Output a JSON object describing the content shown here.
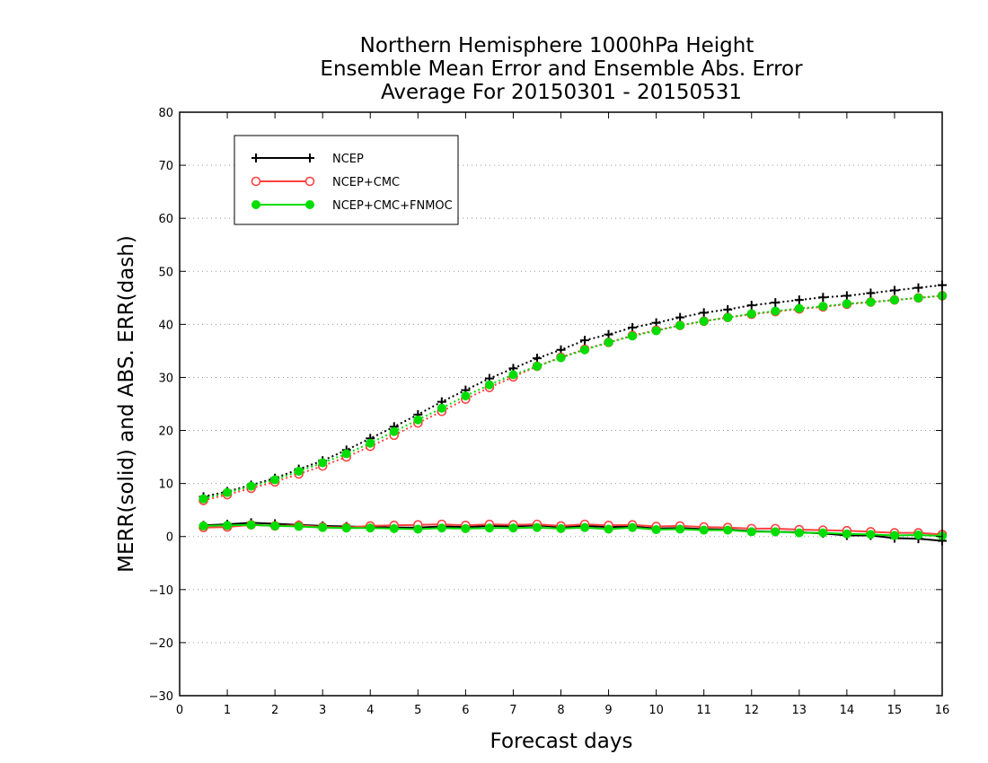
{
  "chart_data": {
    "type": "line",
    "title_lines": [
      "Northern Hemisphere 1000hPa Height",
      "Ensemble Mean Error and Ensemble Abs. Error",
      "Average For 20150301 - 20150531"
    ],
    "xlabel": "Forecast days",
    "ylabel": "MERR(solid) and ABS. ERR(dash)",
    "xlim": [
      0,
      16
    ],
    "ylim": [
      -30,
      80
    ],
    "x_ticks": [
      0,
      1,
      2,
      3,
      4,
      5,
      6,
      7,
      8,
      9,
      10,
      11,
      12,
      13,
      14,
      15,
      16
    ],
    "y_ticks": [
      -30,
      -20,
      -10,
      0,
      10,
      20,
      30,
      40,
      50,
      60,
      70,
      80
    ],
    "grid": "horizontal-dotted",
    "legend_position": "top-left",
    "x": [
      0.5,
      1,
      1.5,
      2,
      2.5,
      3,
      3.5,
      4,
      4.5,
      5,
      5.5,
      6,
      6.5,
      7,
      7.5,
      8,
      8.5,
      9,
      9.5,
      10,
      10.5,
      11,
      11.5,
      12,
      12.5,
      13,
      13.5,
      14,
      14.5,
      15,
      15.5,
      16
    ],
    "series": [
      {
        "name": "NCEP",
        "color": "#000000",
        "marker": "plus",
        "abs_err": [
          7.5,
          8.5,
          9.7,
          11,
          12.7,
          14.3,
          16.3,
          18.5,
          20.7,
          23,
          25.4,
          27.6,
          29.8,
          31.7,
          33.6,
          35.2,
          37,
          38.1,
          39.4,
          40.3,
          41.3,
          42.2,
          42.8,
          43.6,
          44.1,
          44.6,
          45.1,
          45.4,
          45.9,
          46.4,
          46.9,
          47.4
        ],
        "mean_err": [
          2.1,
          2.3,
          2.6,
          2.4,
          2.2,
          2,
          1.9,
          1.8,
          1.7,
          1.7,
          1.9,
          1.8,
          2,
          1.9,
          2.1,
          1.8,
          2,
          1.8,
          1.9,
          1.5,
          1.6,
          1.4,
          1.3,
          1,
          0.9,
          0.8,
          0.6,
          0.2,
          0.2,
          -0.3,
          -0.4,
          -0.8
        ]
      },
      {
        "name": "NCEP+CMC",
        "color": "#ff4040",
        "marker": "open-circle",
        "abs_err": [
          6.8,
          7.9,
          9.1,
          10.3,
          11.8,
          13.3,
          15,
          17,
          19.1,
          21.4,
          23.6,
          25.9,
          28.1,
          30.1,
          32.1,
          33.8,
          35.3,
          36.6,
          37.9,
          38.9,
          39.8,
          40.6,
          41.3,
          41.9,
          42.4,
          42.9,
          43.3,
          43.8,
          44.2,
          44.6,
          45,
          45.4
        ],
        "mean_err": [
          1.7,
          1.8,
          2.2,
          2,
          2.1,
          1.8,
          1.7,
          2,
          2.1,
          2.2,
          2.3,
          2.1,
          2.3,
          2.2,
          2.3,
          2,
          2.3,
          2.1,
          2.2,
          1.9,
          2,
          1.8,
          1.7,
          1.5,
          1.5,
          1.3,
          1.2,
          1.1,
          0.9,
          0.7,
          0.7,
          0.4
        ]
      },
      {
        "name": "NCEP+CMC+FNMOC",
        "color": "#00dd00",
        "marker": "filled-circle",
        "abs_err": [
          7.1,
          8.3,
          9.5,
          10.7,
          12.3,
          13.9,
          15.6,
          17.6,
          19.8,
          22,
          24.2,
          26.5,
          28.6,
          30.5,
          32.1,
          33.7,
          35.2,
          36.6,
          37.8,
          38.8,
          39.8,
          40.6,
          41.3,
          42,
          42.5,
          43,
          43.4,
          43.9,
          44.2,
          44.6,
          45,
          45.4
        ],
        "mean_err": [
          2,
          2.1,
          2.2,
          2,
          1.9,
          1.7,
          1.6,
          1.6,
          1.5,
          1.4,
          1.6,
          1.5,
          1.6,
          1.6,
          1.7,
          1.5,
          1.7,
          1.4,
          1.7,
          1.3,
          1.4,
          1.2,
          1.2,
          0.9,
          0.9,
          0.7,
          0.7,
          0.5,
          0.4,
          0.2,
          0.3,
          0.1
        ]
      }
    ]
  }
}
